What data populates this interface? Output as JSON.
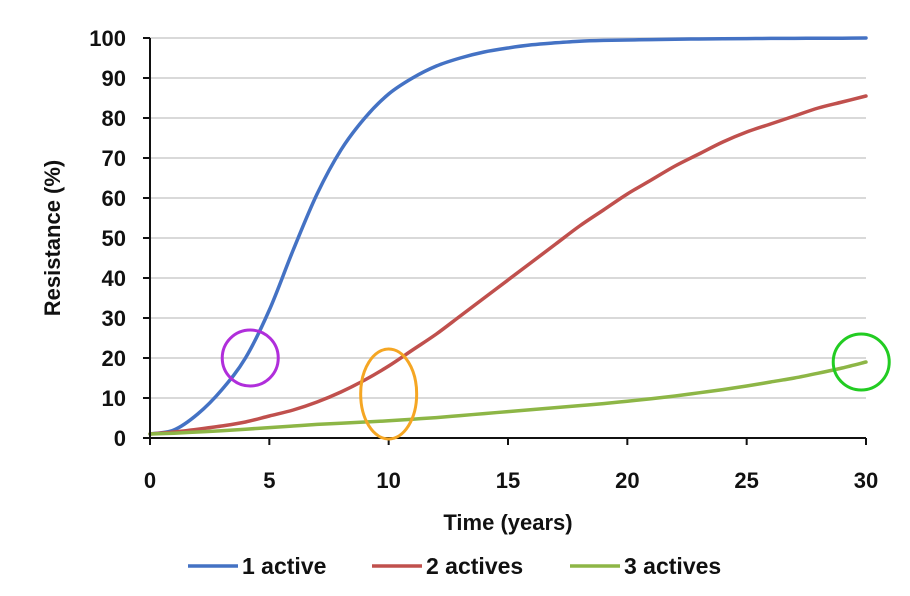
{
  "chart_data": {
    "type": "line",
    "title": "",
    "xlabel": "Time (years)",
    "ylabel": "Resistance (%)",
    "xlim": [
      0,
      30
    ],
    "ylim": [
      0,
      100
    ],
    "x_ticks": [
      0,
      5,
      10,
      15,
      20,
      25,
      30
    ],
    "y_ticks": [
      0,
      10,
      20,
      30,
      40,
      50,
      60,
      70,
      80,
      90,
      100
    ],
    "grid": "horizontal",
    "legend_position": "bottom",
    "x": [
      0,
      1,
      2,
      3,
      4,
      5,
      6,
      7,
      8,
      9,
      10,
      11,
      12,
      13,
      14,
      15,
      16,
      17,
      18,
      19,
      20,
      21,
      22,
      23,
      24,
      25,
      26,
      27,
      28,
      29,
      30
    ],
    "series": [
      {
        "name": "1 active",
        "color": "#4472C4",
        "values": [
          1,
          2,
          6,
          12,
          20,
          32,
          47,
          61,
          72,
          80,
          86,
          90,
          93,
          95,
          96.5,
          97.5,
          98.3,
          98.8,
          99.2,
          99.4,
          99.5,
          99.6,
          99.7,
          99.75,
          99.8,
          99.85,
          99.9,
          99.9,
          99.95,
          99.95,
          100
        ]
      },
      {
        "name": "2 actives",
        "color": "#C0504D",
        "values": [
          1,
          1.5,
          2.2,
          3,
          4,
          5.5,
          7,
          9,
          11.5,
          14.5,
          18,
          22,
          26,
          30.5,
          35,
          39.5,
          44,
          48.5,
          53,
          57,
          61,
          64.5,
          68,
          71,
          74,
          76.5,
          78.5,
          80.5,
          82.5,
          84,
          85.5
        ]
      },
      {
        "name": "3 actives",
        "color": "#8DB646",
        "values": [
          1,
          1.2,
          1.5,
          1.8,
          2.2,
          2.6,
          3,
          3.4,
          3.7,
          4,
          4.3,
          4.7,
          5.1,
          5.6,
          6.1,
          6.6,
          7.1,
          7.6,
          8.1,
          8.6,
          9.2,
          9.8,
          10.5,
          11.3,
          12.1,
          13,
          14,
          15,
          16.2,
          17.5,
          19
        ]
      }
    ],
    "annotations": [
      {
        "type": "circle",
        "name": "magenta-circle",
        "color": "#B02EDB",
        "x": 4.2,
        "y": 20
      },
      {
        "type": "circle",
        "name": "orange-circle",
        "color": "#F5A623",
        "x": 10,
        "y": 11
      },
      {
        "type": "circle",
        "name": "green-circle",
        "color": "#22CC22",
        "x": 29.8,
        "y": 19
      }
    ]
  }
}
